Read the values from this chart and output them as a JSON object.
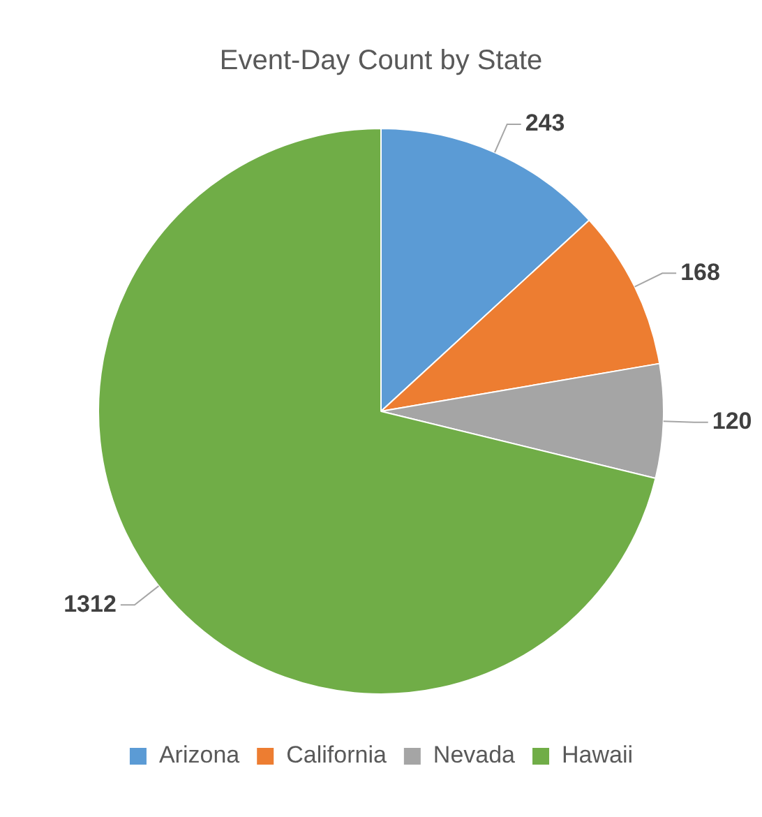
{
  "chart_data": {
    "type": "pie",
    "title": "Event-Day Count by State",
    "categories": [
      "Arizona",
      "California",
      "Nevada",
      "Hawaii"
    ],
    "values": [
      243,
      168,
      120,
      1312
    ],
    "colors": [
      "#5b9bd5",
      "#ed7d31",
      "#a5a5a5",
      "#70ad47"
    ],
    "data_labels": true,
    "legend": "bottom"
  }
}
